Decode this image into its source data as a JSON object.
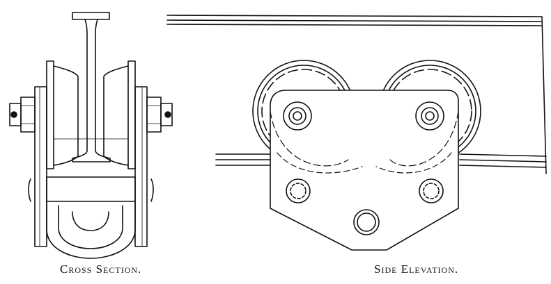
{
  "captions": {
    "cross_section": "Cross Section.",
    "side_elevation": "Side Elevation."
  },
  "colors": {
    "ink": "#111111",
    "paper": "#ffffff"
  }
}
